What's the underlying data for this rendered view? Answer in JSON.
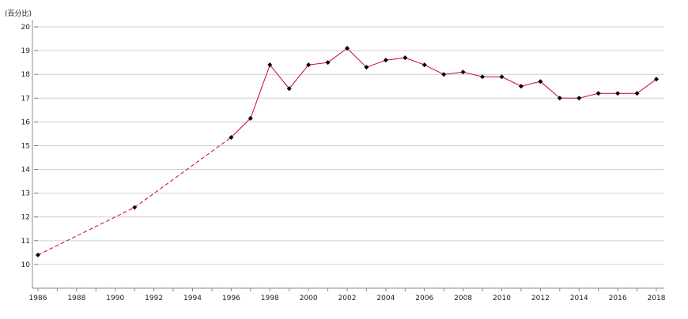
{
  "chart_data": {
    "type": "line",
    "y_unit_label": "(百分比)",
    "x": [
      1986,
      1991,
      1996,
      1997,
      1998,
      1999,
      2000,
      2001,
      2002,
      2003,
      2004,
      2005,
      2006,
      2007,
      2008,
      2009,
      2010,
      2011,
      2012,
      2013,
      2014,
      2015,
      2016,
      2017,
      2018
    ],
    "series": [
      {
        "values": [
          10.4,
          12.4,
          15.35,
          16.15,
          18.4,
          17.4,
          18.4,
          18.5,
          19.1,
          18.3,
          18.6,
          18.7,
          18.4,
          18.0,
          18.1,
          17.9,
          17.9,
          17.5,
          17.7,
          17.0,
          17.0,
          17.2,
          17.2,
          17.2,
          17.8
        ],
        "color": "#cc0033",
        "marker_color": "#000000",
        "dashed_until": 1996
      }
    ],
    "xlim": [
      1986,
      2018
    ],
    "ylim": [
      9,
      20.3
    ],
    "yticks": [
      10,
      11,
      12,
      13,
      14,
      15,
      16,
      17,
      18,
      19,
      20
    ],
    "xticks": [
      1986,
      1988,
      1990,
      1992,
      1994,
      1996,
      1998,
      2000,
      2002,
      2004,
      2006,
      2008,
      2010,
      2012,
      2014,
      2016,
      2018
    ],
    "grid": "horizontal",
    "gridline_color": "#d0d0d0"
  }
}
